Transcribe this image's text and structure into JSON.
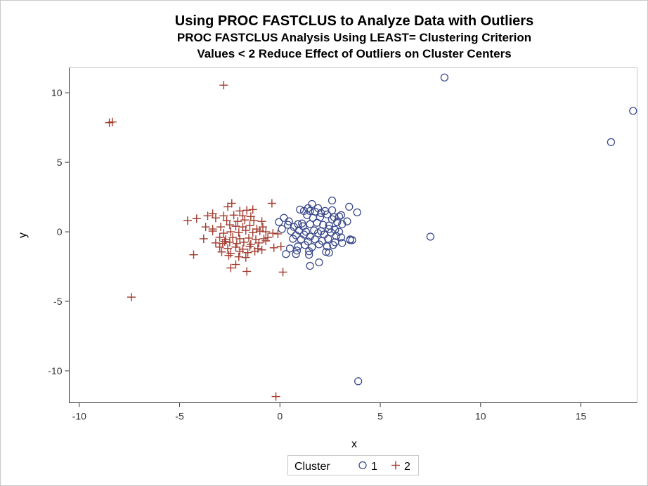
{
  "chart_data": {
    "type": "scatter",
    "title": "Using PROC FASTCLUS to Analyze Data with Outliers",
    "subtitle": "PROC FASTCLUS Analysis Using LEAST= Clustering Criterion",
    "subtitle2": "Values < 2 Reduce Effect of Outliers on Cluster Centers",
    "xlabel": "x",
    "ylabel": "y",
    "xlim": [
      -10.5,
      17.8
    ],
    "ylim": [
      -12.3,
      11.8
    ],
    "xticks": [
      -10,
      -5,
      0,
      5,
      10,
      15
    ],
    "yticks": [
      -10,
      -5,
      0,
      5,
      10
    ],
    "xtick_labels": [
      "-10",
      "-5",
      "0",
      "5",
      "10",
      "15"
    ],
    "ytick_labels": [
      "-10",
      "-5",
      "0",
      "5",
      "10"
    ],
    "legend_title": "Cluster",
    "legend_position": "bottom",
    "series": [
      {
        "name": "1",
        "marker": "circle",
        "color": "#3c4b8c",
        "points": [
          [
            8.2,
            11.1
          ],
          [
            17.6,
            8.7
          ],
          [
            16.5,
            6.45
          ],
          [
            7.5,
            -0.35
          ],
          [
            3.9,
            -10.75
          ],
          [
            2.6,
            2.25
          ],
          [
            1.6,
            2.0
          ],
          [
            1.4,
            1.7
          ],
          [
            1.2,
            1.5
          ],
          [
            1.5,
            1.5
          ],
          [
            1.75,
            1.45
          ],
          [
            2.05,
            1.35
          ],
          [
            2.6,
            1.55
          ],
          [
            3.45,
            1.8
          ],
          [
            3.85,
            1.4
          ],
          [
            0.2,
            1.0
          ],
          [
            0.45,
            0.75
          ],
          [
            0.9,
            0.55
          ],
          [
            1.1,
            0.6
          ],
          [
            1.35,
            1.2
          ],
          [
            1.65,
            1.0
          ],
          [
            2.0,
            1.05
          ],
          [
            2.35,
            1.25
          ],
          [
            2.7,
            1.05
          ],
          [
            2.95,
            1.1
          ],
          [
            3.05,
            1.2
          ],
          [
            -0.05,
            0.7
          ],
          [
            0.4,
            0.5
          ],
          [
            0.7,
            0.35
          ],
          [
            1.15,
            0.4
          ],
          [
            1.5,
            0.55
          ],
          [
            1.85,
            0.65
          ],
          [
            2.15,
            0.5
          ],
          [
            2.45,
            0.45
          ],
          [
            2.85,
            0.7
          ],
          [
            3.1,
            0.55
          ],
          [
            3.35,
            0.75
          ],
          [
            0.55,
            0.05
          ],
          [
            0.95,
            0.1
          ],
          [
            1.3,
            0.0
          ],
          [
            1.7,
            0.1
          ],
          [
            2.05,
            0.05
          ],
          [
            2.45,
            0.2
          ],
          [
            2.75,
            0.15
          ],
          [
            2.95,
            0.0
          ],
          [
            0.8,
            -0.25
          ],
          [
            1.2,
            -0.2
          ],
          [
            1.5,
            -0.35
          ],
          [
            1.9,
            -0.1
          ],
          [
            2.2,
            -0.2
          ],
          [
            2.55,
            -0.05
          ],
          [
            2.8,
            -0.3
          ],
          [
            3.05,
            -0.4
          ],
          [
            3.5,
            -0.55
          ],
          [
            3.6,
            -0.6
          ],
          [
            0.65,
            -0.5
          ],
          [
            1.05,
            -0.55
          ],
          [
            1.4,
            -0.7
          ],
          [
            1.75,
            -0.55
          ],
          [
            2.1,
            -0.65
          ],
          [
            2.4,
            -0.5
          ],
          [
            2.75,
            -0.75
          ],
          [
            3.1,
            -0.8
          ],
          [
            0.9,
            -1.05
          ],
          [
            1.25,
            -0.95
          ],
          [
            1.6,
            -1.1
          ],
          [
            1.95,
            -0.9
          ],
          [
            2.35,
            -1.05
          ],
          [
            2.65,
            -0.95
          ],
          [
            0.5,
            -1.2
          ],
          [
            0.85,
            -1.35
          ],
          [
            1.45,
            -1.4
          ],
          [
            2.3,
            -1.45
          ],
          [
            0.3,
            -1.6
          ],
          [
            0.8,
            -1.6
          ],
          [
            1.45,
            -1.65
          ],
          [
            2.45,
            -1.5
          ],
          [
            1.95,
            -2.2
          ],
          [
            1.5,
            -2.45
          ],
          [
            1.0,
            1.6
          ],
          [
            1.9,
            1.7
          ],
          [
            2.25,
            1.5
          ],
          [
            0.1,
            0.2
          ],
          [
            3.5,
            -0.6
          ],
          [
            2.6,
            0.9
          ]
        ]
      },
      {
        "name": "2",
        "marker": "plus",
        "color": "#a23a2d",
        "points": [
          [
            -2.8,
            10.55
          ],
          [
            -8.5,
            7.85
          ],
          [
            -8.35,
            7.9
          ],
          [
            -7.4,
            -4.7
          ],
          [
            -0.2,
            -11.85
          ],
          [
            0.15,
            -2.9
          ],
          [
            -0.4,
            2.05
          ],
          [
            -2.4,
            2.05
          ],
          [
            -2.6,
            1.8
          ],
          [
            -2.0,
            1.5
          ],
          [
            -1.65,
            1.55
          ],
          [
            -1.35,
            1.6
          ],
          [
            -3.35,
            1.3
          ],
          [
            -3.6,
            1.15
          ],
          [
            -2.8,
            1.15
          ],
          [
            -2.3,
            1.2
          ],
          [
            -1.85,
            1.15
          ],
          [
            -1.45,
            1.1
          ],
          [
            -4.6,
            0.8
          ],
          [
            -4.15,
            0.95
          ],
          [
            -3.2,
            1.0
          ],
          [
            -2.65,
            0.8
          ],
          [
            -2.1,
            0.75
          ],
          [
            -1.75,
            0.85
          ],
          [
            -1.3,
            0.8
          ],
          [
            -0.9,
            0.75
          ],
          [
            -3.7,
            0.35
          ],
          [
            -3.35,
            0.2
          ],
          [
            -2.95,
            0.35
          ],
          [
            -2.5,
            0.5
          ],
          [
            -2.2,
            0.4
          ],
          [
            -1.85,
            0.35
          ],
          [
            -1.5,
            0.45
          ],
          [
            -1.15,
            0.2
          ],
          [
            -0.85,
            0.35
          ],
          [
            -3.35,
            0.05
          ],
          [
            -2.8,
            -0.1
          ],
          [
            -2.45,
            0.0
          ],
          [
            -2.05,
            -0.05
          ],
          [
            -1.7,
            0.1
          ],
          [
            -1.35,
            -0.05
          ],
          [
            -1.0,
            0.05
          ],
          [
            -0.7,
            0.0
          ],
          [
            -0.35,
            -0.1
          ],
          [
            -0.1,
            -0.15
          ],
          [
            -3.8,
            -0.5
          ],
          [
            -3.0,
            -0.4
          ],
          [
            -2.7,
            -0.55
          ],
          [
            -2.35,
            -0.4
          ],
          [
            -2.0,
            -0.5
          ],
          [
            -1.55,
            -0.45
          ],
          [
            -1.2,
            -0.55
          ],
          [
            -0.8,
            -0.5
          ],
          [
            -0.6,
            -0.4
          ],
          [
            -3.2,
            -0.8
          ],
          [
            -2.85,
            -0.85
          ],
          [
            -2.5,
            -0.75
          ],
          [
            -2.15,
            -0.85
          ],
          [
            -1.8,
            -0.75
          ],
          [
            -1.45,
            -0.9
          ],
          [
            -1.05,
            -0.8
          ],
          [
            -0.7,
            -0.65
          ],
          [
            -3.0,
            -1.1
          ],
          [
            -2.6,
            -1.2
          ],
          [
            -2.2,
            -1.1
          ],
          [
            -1.85,
            -1.25
          ],
          [
            -1.5,
            -1.05
          ],
          [
            -1.1,
            -1.2
          ],
          [
            -0.3,
            -1.15
          ],
          [
            0.05,
            -1.05
          ],
          [
            -2.9,
            -1.45
          ],
          [
            -2.45,
            -1.55
          ],
          [
            -2.0,
            -1.4
          ],
          [
            -1.6,
            -1.5
          ],
          [
            -1.25,
            -1.4
          ],
          [
            -0.9,
            -1.3
          ],
          [
            -4.3,
            -1.65
          ],
          [
            -2.55,
            -1.7
          ],
          [
            -2.05,
            -1.8
          ],
          [
            -1.7,
            -1.85
          ],
          [
            -2.2,
            -2.35
          ],
          [
            -2.45,
            -2.6
          ],
          [
            -1.65,
            -2.85
          ],
          [
            -2.75,
            -0.7
          ]
        ]
      }
    ]
  }
}
